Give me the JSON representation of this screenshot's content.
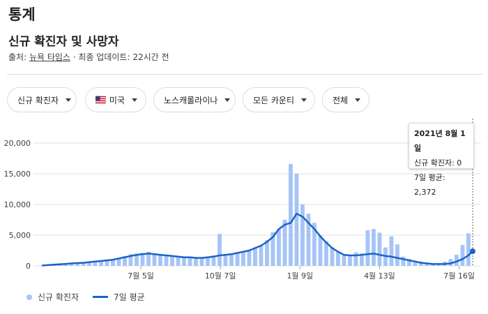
{
  "header": {
    "page_title": "통계",
    "section_title": "신규 확진자 및 사망자",
    "source_prefix": "출처: ",
    "source_link": "뉴욕 타임스",
    "source_suffix": " · 최종 업데이트: 22시간 전"
  },
  "filters": {
    "metric": "신규 확진자",
    "country": "미국",
    "region": "노스캐롤라이나",
    "county": "모든 카운티",
    "range": "전체"
  },
  "icons": {
    "country_flag": "us-flag-icon",
    "dropdown": "caret-down-icon"
  },
  "colors": {
    "bars": "#a6c4f7",
    "average_line": "#1a63c7",
    "grid": "#e0e0e0"
  },
  "tooltip": {
    "date": "2021년 8월 1일",
    "cases_line": "신규 확진자: 0",
    "avg_line": "7일 평균: 2,372"
  },
  "legend": {
    "bars_label": "신규 확진자",
    "line_label": "7일 평균"
  },
  "chart_data": {
    "type": "bar",
    "title": "",
    "xlabel": "",
    "ylabel": "",
    "ylim": [
      0,
      20000
    ],
    "y_ticks": [
      "20,000",
      "15,000",
      "10,000",
      "5,000",
      "0"
    ],
    "y_tick_values": [
      20000,
      15000,
      10000,
      5000,
      0
    ],
    "x_ticks": [
      "7월 5일",
      "10월 7일",
      "1월 9일",
      "4월 13일",
      "7월 16일"
    ],
    "x_tick_dates": [
      "2020-07-05",
      "2020-10-07",
      "2021-01-09",
      "2021-04-13",
      "2021-07-16"
    ],
    "x_range": [
      "2020-03-10",
      "2021-08-01"
    ],
    "grid": true,
    "legend_position": "bottom-left",
    "series": [
      {
        "name": "신규 확진자",
        "kind": "bar",
        "step_days": 7,
        "dates": [
          "2020-03-10",
          "2020-03-17",
          "2020-03-24",
          "2020-03-31",
          "2020-04-07",
          "2020-04-14",
          "2020-04-21",
          "2020-04-28",
          "2020-05-05",
          "2020-05-12",
          "2020-05-19",
          "2020-05-26",
          "2020-06-02",
          "2020-06-09",
          "2020-06-16",
          "2020-06-23",
          "2020-06-30",
          "2020-07-07",
          "2020-07-14",
          "2020-07-21",
          "2020-07-28",
          "2020-08-04",
          "2020-08-11",
          "2020-08-18",
          "2020-08-25",
          "2020-09-01",
          "2020-09-08",
          "2020-09-15",
          "2020-09-22",
          "2020-09-29",
          "2020-10-06",
          "2020-10-13",
          "2020-10-20",
          "2020-10-27",
          "2020-11-03",
          "2020-11-10",
          "2020-11-17",
          "2020-11-24",
          "2020-12-01",
          "2020-12-08",
          "2020-12-15",
          "2020-12-22",
          "2020-12-29",
          "2021-01-05",
          "2021-01-12",
          "2021-01-19",
          "2021-01-26",
          "2021-02-02",
          "2021-02-09",
          "2021-02-16",
          "2021-02-23",
          "2021-03-02",
          "2021-03-09",
          "2021-03-16",
          "2021-03-23",
          "2021-03-30",
          "2021-04-06",
          "2021-04-13",
          "2021-04-20",
          "2021-04-27",
          "2021-05-04",
          "2021-05-11",
          "2021-05-18",
          "2021-05-25",
          "2021-06-01",
          "2021-06-08",
          "2021-06-15",
          "2021-06-22",
          "2021-06-29",
          "2021-07-06",
          "2021-07-13",
          "2021-07-20",
          "2021-07-27",
          "2021-08-01"
        ],
        "values": [
          50,
          150,
          250,
          300,
          350,
          450,
          500,
          550,
          700,
          800,
          900,
          1000,
          1100,
          1300,
          1600,
          1900,
          2000,
          2100,
          2300,
          2000,
          1900,
          1800,
          1700,
          1500,
          1400,
          1500,
          1400,
          1300,
          1500,
          1700,
          5200,
          1800,
          2000,
          2200,
          2400,
          2600,
          3000,
          3300,
          4200,
          5500,
          6000,
          7500,
          16600,
          15000,
          10000,
          8500,
          7000,
          5000,
          4000,
          3000,
          2300,
          1900,
          1800,
          2200,
          2000,
          5800,
          6000,
          5400,
          3000,
          4800,
          3500,
          1500,
          1100,
          800,
          700,
          500,
          400,
          350,
          700,
          1100,
          1800,
          3400,
          5300,
          0
        ]
      },
      {
        "name": "7일 평균",
        "kind": "line",
        "values": [
          50,
          120,
          200,
          260,
          320,
          400,
          450,
          500,
          600,
          700,
          800,
          900,
          1000,
          1200,
          1400,
          1600,
          1800,
          1900,
          2000,
          1900,
          1800,
          1700,
          1600,
          1500,
          1400,
          1400,
          1300,
          1300,
          1400,
          1500,
          1700,
          1800,
          1900,
          2100,
          2300,
          2500,
          2900,
          3300,
          3900,
          4700,
          6000,
          6700,
          7000,
          8500,
          8000,
          7000,
          6000,
          4800,
          3800,
          2900,
          2300,
          1800,
          1700,
          1700,
          1800,
          1900,
          2000,
          1800,
          1600,
          1500,
          1300,
          1100,
          900,
          700,
          500,
          400,
          300,
          300,
          300,
          400,
          700,
          1100,
          1700,
          2372
        ]
      }
    ]
  }
}
